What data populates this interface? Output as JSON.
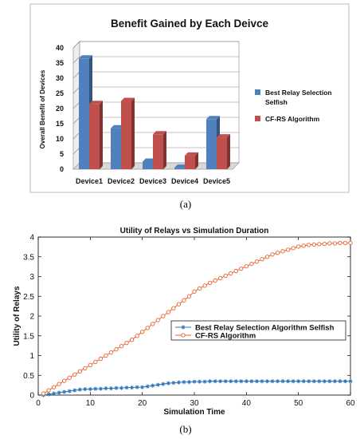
{
  "panels": {
    "a": {
      "caption": "(a)",
      "chart_data": {
        "type": "bar",
        "title": "Benefit Gained by Each Deivce",
        "ylabel": "Overall Benefit of Devices",
        "xlabel": "",
        "categories": [
          "Device1",
          "Device2",
          "Device3",
          "Device4",
          "Device5"
        ],
        "ylim": [
          0,
          40
        ],
        "yticks": [
          0,
          5,
          10,
          15,
          20,
          25,
          30,
          35,
          40
        ],
        "grid": true,
        "legend": "right",
        "series": [
          {
            "name": "Best Relay Selection Selfish",
            "values": [
              36.5,
              13.5,
              2.5,
              0.5,
              16.5
            ],
            "color": "#4f81bd"
          },
          {
            "name": "CF-RS Algorithm",
            "values": [
              21.5,
              22.5,
              11.5,
              4.5,
              10.5
            ],
            "color": "#c0504d"
          }
        ]
      }
    },
    "b": {
      "caption": "(b)",
      "chart_data": {
        "type": "line",
        "title": "Utility of Relays vs Simulation Duration",
        "xlabel": "Simulation Time",
        "ylabel": "Utility of Relays",
        "xlim": [
          0,
          60
        ],
        "ylim": [
          0,
          4
        ],
        "xticks": [
          0,
          10,
          20,
          30,
          40,
          50,
          60
        ],
        "yticks": [
          "0",
          "0.5",
          "1",
          "1.5",
          "2",
          "2.5",
          "3",
          "3.5",
          "4"
        ],
        "grid": false,
        "legend": "center-right",
        "x": [
          1,
          2,
          3,
          4,
          5,
          6,
          7,
          8,
          9,
          10,
          11,
          12,
          13,
          14,
          15,
          16,
          17,
          18,
          19,
          20,
          21,
          22,
          23,
          24,
          25,
          26,
          27,
          28,
          29,
          30,
          31,
          32,
          33,
          34,
          35,
          36,
          37,
          38,
          39,
          40,
          41,
          42,
          43,
          44,
          45,
          46,
          47,
          48,
          49,
          50,
          51,
          52,
          53,
          54,
          55,
          56,
          57,
          58,
          59,
          60
        ],
        "series": [
          {
            "name": "Best Relay Selection Algorithm Selfish",
            "color": "#2e75b6",
            "marker": "asterisk",
            "values": [
              0.0,
              0.02,
              0.04,
              0.06,
              0.08,
              0.1,
              0.12,
              0.14,
              0.15,
              0.15,
              0.16,
              0.16,
              0.17,
              0.17,
              0.18,
              0.18,
              0.19,
              0.19,
              0.2,
              0.2,
              0.22,
              0.24,
              0.26,
              0.28,
              0.3,
              0.31,
              0.32,
              0.33,
              0.33,
              0.34,
              0.34,
              0.34,
              0.35,
              0.35,
              0.35,
              0.35,
              0.35,
              0.35,
              0.35,
              0.35,
              0.35,
              0.35,
              0.35,
              0.35,
              0.35,
              0.35,
              0.35,
              0.35,
              0.35,
              0.35,
              0.35,
              0.35,
              0.35,
              0.35,
              0.35,
              0.35,
              0.35,
              0.35,
              0.35,
              0.35
            ]
          },
          {
            "name": "CF-RS Algorithm",
            "color": "#e8622a",
            "marker": "circle",
            "values": [
              0.04,
              0.12,
              0.2,
              0.28,
              0.36,
              0.44,
              0.52,
              0.6,
              0.68,
              0.76,
              0.84,
              0.92,
              1.0,
              1.08,
              1.16,
              1.24,
              1.32,
              1.4,
              1.5,
              1.6,
              1.7,
              1.8,
              1.9,
              2.0,
              2.1,
              2.2,
              2.3,
              2.4,
              2.5,
              2.62,
              2.7,
              2.77,
              2.84,
              2.9,
              2.96,
              3.02,
              3.08,
              3.14,
              3.2,
              3.26,
              3.32,
              3.38,
              3.44,
              3.5,
              3.56,
              3.6,
              3.64,
              3.68,
              3.72,
              3.76,
              3.78,
              3.8,
              3.81,
              3.82,
              3.83,
              3.84,
              3.84,
              3.85,
              3.85,
              3.85
            ]
          }
        ]
      }
    }
  }
}
